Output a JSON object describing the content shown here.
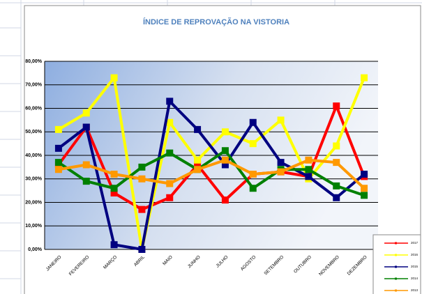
{
  "chart_data": {
    "type": "line",
    "title": "ÍNDICE DE REPROVAÇÃO NA VISTORIA",
    "categories": [
      "JANEIRO",
      "FEVEREIRO",
      "MARÇO",
      "ABRIL",
      "MAIO",
      "JUNHO",
      "JULHO",
      "AGOSTO",
      "SETEMBRO",
      "OUTUBRO",
      "NOVEMBRO",
      "DEZEMBRO"
    ],
    "series": [
      {
        "name": "2017",
        "color": "#ff0000",
        "values": [
          36,
          52,
          24,
          17,
          22,
          36,
          21,
          32,
          33,
          31,
          61,
          31
        ]
      },
      {
        "name": "2016",
        "color": "#ffff00",
        "values": [
          51,
          58,
          73,
          0,
          54,
          38,
          50,
          45,
          55,
          30,
          44,
          73
        ]
      },
      {
        "name": "2015",
        "color": "#000080",
        "values": [
          43,
          52,
          2,
          0,
          63,
          51,
          36,
          54,
          37,
          31,
          22,
          32
        ]
      },
      {
        "name": "2014",
        "color": "#008000",
        "values": [
          37,
          29,
          26,
          35,
          41,
          34,
          42,
          26,
          34,
          34,
          27,
          23
        ]
      },
      {
        "name": "2013",
        "color": "#ff9900",
        "values": [
          34,
          36,
          32,
          30,
          28,
          34,
          38,
          32,
          33,
          38,
          37,
          26
        ]
      }
    ],
    "ylim": [
      0,
      80
    ],
    "yticks": [
      {
        "value": 0,
        "label": "0,00%"
      },
      {
        "value": 10,
        "label": "10,00%"
      },
      {
        "value": 20,
        "label": "20,00%"
      },
      {
        "value": 30,
        "label": "30,00%"
      },
      {
        "value": 40,
        "label": "40,00%"
      },
      {
        "value": 50,
        "label": "50,00%"
      },
      {
        "value": 60,
        "label": "60,00%"
      },
      {
        "value": 70,
        "label": "70,00%"
      },
      {
        "value": 80,
        "label": "80,00%"
      }
    ],
    "grid": true
  }
}
